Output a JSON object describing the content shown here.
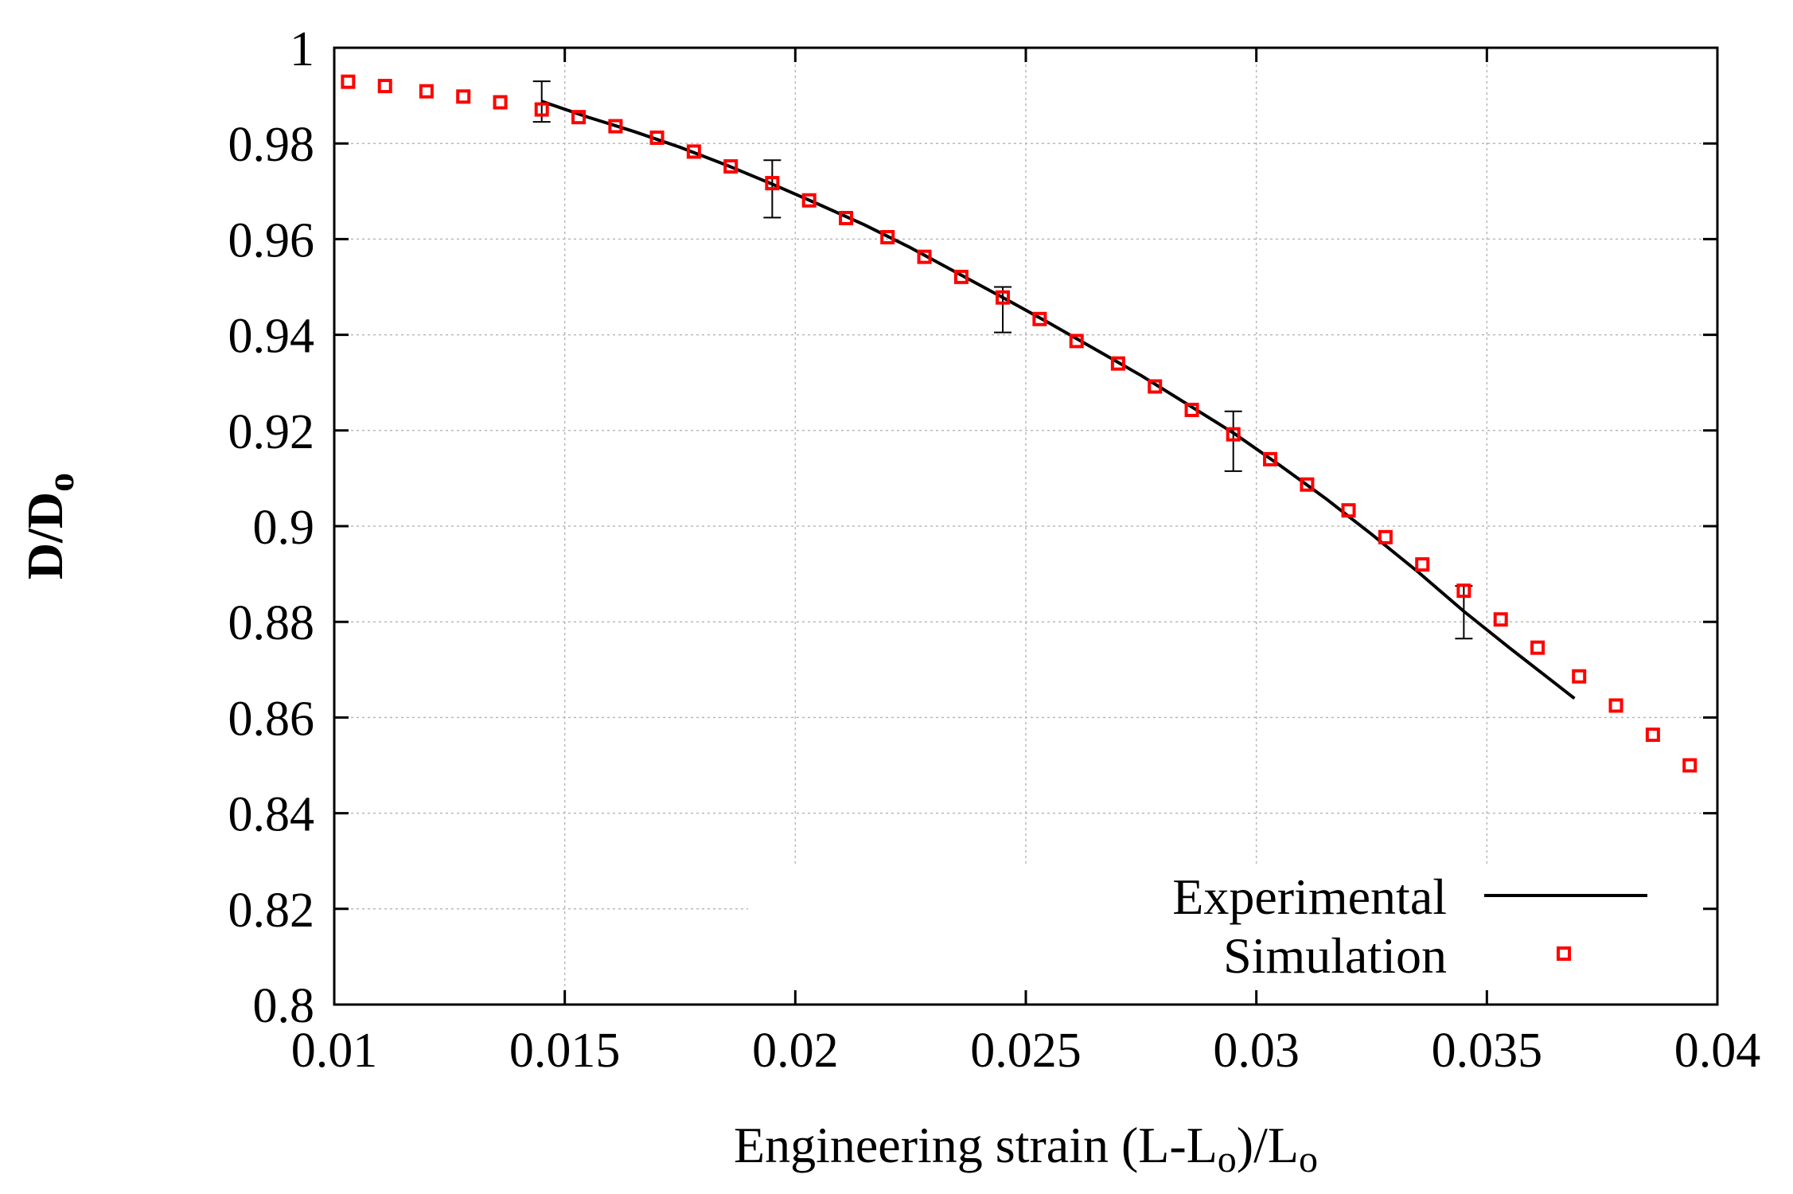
{
  "chart_data": {
    "type": "line",
    "title": "",
    "xlabel": "Engineering strain (L-L",
    "xlabel_sub": "o",
    "xlabel_mid": ")/L",
    "xlabel_sub2": "o",
    "ylabel": "D/D",
    "ylabel_sub": "o",
    "xlim": [
      0.01,
      0.04
    ],
    "ylim": [
      0.8,
      1.0
    ],
    "xticks": [
      0.01,
      0.015,
      0.02,
      0.025,
      0.03,
      0.035,
      0.04
    ],
    "xtick_labels": [
      "0.01",
      "0.015",
      "0.02",
      "0.025",
      "0.03",
      "0.035",
      "0.04"
    ],
    "yticks": [
      0.8,
      0.82,
      0.84,
      0.86,
      0.88,
      0.9,
      0.92,
      0.94,
      0.96,
      0.98,
      1.0
    ],
    "ytick_labels": [
      "0.8",
      "0.82",
      "0.84",
      "0.86",
      "0.88",
      "0.9",
      "0.92",
      "0.94",
      "0.96",
      "0.98",
      "1"
    ],
    "grid": true,
    "legend_position": "bottom-right",
    "series": [
      {
        "name": "Experimental",
        "style": "line",
        "color": "#000000",
        "x": [
          0.0145,
          0.0155,
          0.0165,
          0.0175,
          0.0185,
          0.0195,
          0.0205,
          0.0215,
          0.0225,
          0.0235,
          0.0245,
          0.0255,
          0.0265,
          0.0275,
          0.0285,
          0.0295,
          0.0305,
          0.0315,
          0.0325,
          0.0335,
          0.0345,
          0.0355,
          0.0365,
          0.0369
        ],
        "y": [
          0.9888,
          0.9855,
          0.9825,
          0.9792,
          0.9755,
          0.9715,
          0.9673,
          0.963,
          0.9582,
          0.953,
          0.9478,
          0.9425,
          0.937,
          0.9315,
          0.9255,
          0.9195,
          0.9128,
          0.9058,
          0.8983,
          0.8905,
          0.8822,
          0.8745,
          0.867,
          0.864
        ],
        "error_bars": [
          {
            "x": 0.0145,
            "low": 0.9845,
            "high": 0.993
          },
          {
            "x": 0.0195,
            "low": 0.9645,
            "high": 0.9765
          },
          {
            "x": 0.0245,
            "low": 0.9405,
            "high": 0.95
          },
          {
            "x": 0.0295,
            "low": 0.9115,
            "high": 0.924
          },
          {
            "x": 0.0345,
            "low": 0.8765,
            "high": 0.8875
          }
        ]
      },
      {
        "name": "Simulation",
        "style": "markers",
        "color": "#ff0000",
        "x": [
          0.0103,
          0.0111,
          0.012,
          0.0128,
          0.0136,
          0.0145,
          0.0153,
          0.0161,
          0.017,
          0.0178,
          0.0186,
          0.0195,
          0.0203,
          0.0211,
          0.022,
          0.0228,
          0.0236,
          0.0245,
          0.0253,
          0.0261,
          0.027,
          0.0278,
          0.0286,
          0.0295,
          0.0303,
          0.0311,
          0.032,
          0.0328,
          0.0336,
          0.0345,
          0.0353,
          0.0361,
          0.037,
          0.0378,
          0.0386,
          0.0394
        ],
        "y": [
          0.9929,
          0.992,
          0.9909,
          0.9898,
          0.9886,
          0.9871,
          0.9855,
          0.9836,
          0.9812,
          0.9783,
          0.9752,
          0.9717,
          0.9681,
          0.9644,
          0.9604,
          0.9563,
          0.9521,
          0.9478,
          0.9433,
          0.9387,
          0.934,
          0.9292,
          0.9243,
          0.9192,
          0.914,
          0.9087,
          0.9033,
          0.8977,
          0.892,
          0.8865,
          0.8805,
          0.8746,
          0.8686,
          0.8625,
          0.8564,
          0.85
        ]
      }
    ]
  }
}
